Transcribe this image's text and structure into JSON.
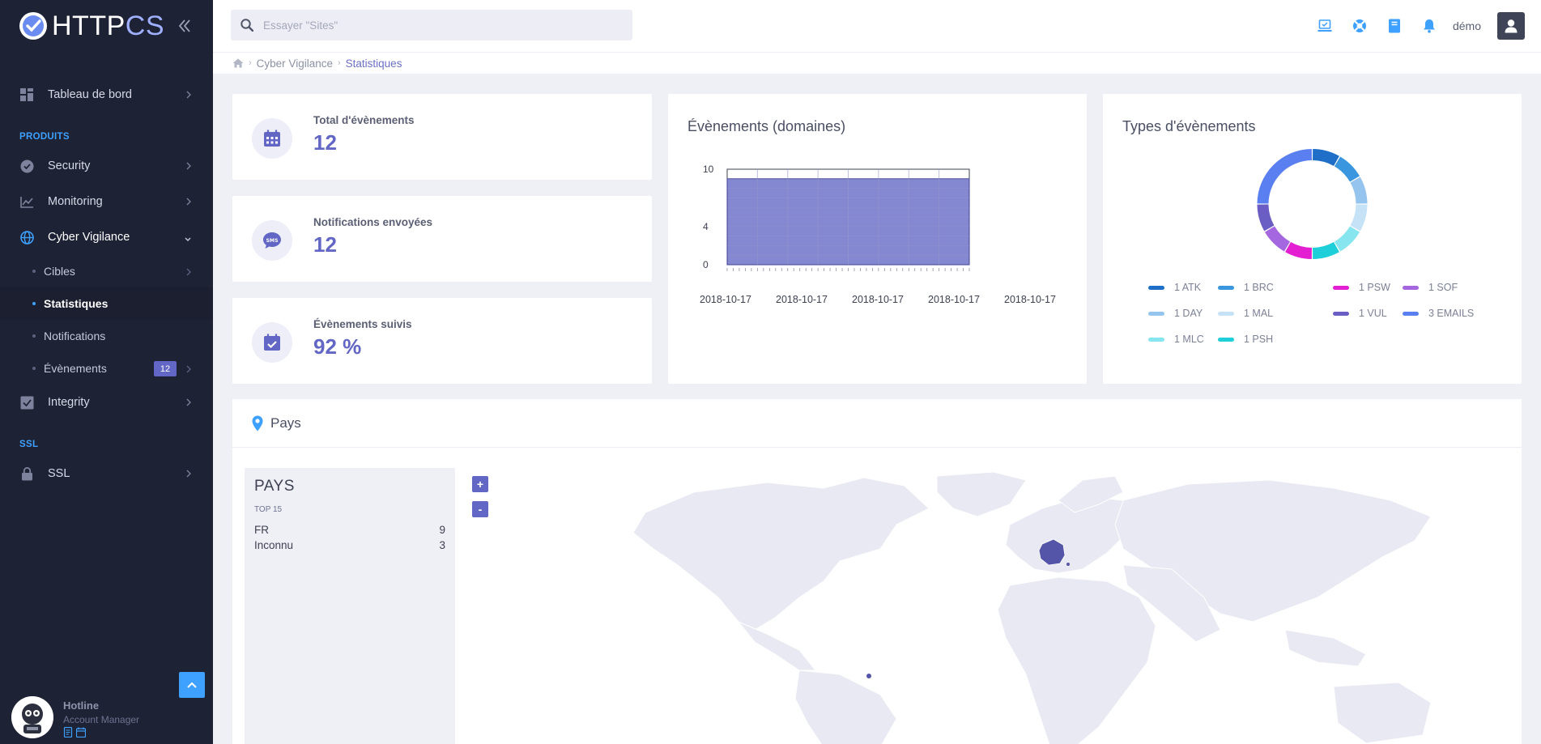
{
  "app": {
    "logo_main": "HTTP",
    "logo_accent": "CS"
  },
  "sidebar": {
    "dashboard": "Tableau de bord",
    "section_products": "PRODUITS",
    "security": "Security",
    "monitoring": "Monitoring",
    "cyber": "Cyber Vigilance",
    "sub": [
      {
        "label": "Cibles"
      },
      {
        "label": "Statistiques"
      },
      {
        "label": "Notifications"
      },
      {
        "label": "Évènements",
        "badge": "12"
      }
    ],
    "integrity": "Integrity",
    "section_ssl": "SSL",
    "ssl": "SSL",
    "hotline": {
      "name": "Hotline",
      "role": "Account Manager"
    }
  },
  "topbar": {
    "search_placeholder": "Essayer \"Sites\"",
    "username": "démo"
  },
  "breadcrumb": {
    "parent": "Cyber Vigilance",
    "current": "Statistiques"
  },
  "stats": [
    {
      "label": "Total d'évènements",
      "value": "12",
      "icon": "calendar-icon"
    },
    {
      "label": "Notifications envoyées",
      "value": "12",
      "icon": "sms-icon"
    },
    {
      "label": "Évènements suivis",
      "value": "92 %",
      "icon": "calendar-check-icon"
    }
  ],
  "events_chart": {
    "title": "Évènements (domaines)",
    "y_ticks": [
      "10",
      "4",
      "0"
    ],
    "x_ticks": [
      "2018-10-17",
      "2018-10-17",
      "2018-10-17",
      "2018-10-17",
      "2018-10-17"
    ]
  },
  "chart_data": [
    {
      "type": "area",
      "title": "Évènements (domaines)",
      "x": [
        "2018-10-17",
        "2018-10-17",
        "2018-10-17",
        "2018-10-17",
        "2018-10-17"
      ],
      "values": [
        9,
        9,
        9,
        9,
        9
      ],
      "ylim": [
        0,
        10
      ],
      "grid": true,
      "color": "#6266c4"
    },
    {
      "type": "pie",
      "title": "Types d'évènements",
      "labels": [
        "1 ATK",
        "1 BRC",
        "1 PSW",
        "1 SOF",
        "1 DAY",
        "1 MAL",
        "1 VUL",
        "3 EMAILS",
        "1 MLC",
        "1 PSH"
      ],
      "segments": [
        {
          "name": "ATK",
          "value": 1,
          "color": "#1f6fc9"
        },
        {
          "name": "BRC",
          "value": 1,
          "color": "#3b96e0"
        },
        {
          "name": "DAY",
          "value": 1,
          "color": "#95c5ef"
        },
        {
          "name": "MAL",
          "value": 1,
          "color": "#c6e2f7"
        },
        {
          "name": "MLC",
          "value": 1,
          "color": "#86e5ee"
        },
        {
          "name": "PSH",
          "value": 1,
          "color": "#1ecfd9"
        },
        {
          "name": "PSW",
          "value": 1,
          "color": "#e31fd1"
        },
        {
          "name": "SOF",
          "value": 1,
          "color": "#a467e0"
        },
        {
          "name": "VUL",
          "value": 1,
          "color": "#6a5ec4"
        },
        {
          "name": "EMAILS",
          "value": 3,
          "color": "#5a7ff0"
        }
      ],
      "donut": true,
      "legend": "bottom"
    }
  ],
  "types_chart": {
    "title": "Types d'évènements"
  },
  "pays": {
    "header": "Pays",
    "panel_title": "PAYS",
    "panel_sub": "TOP 15",
    "rows": [
      {
        "country": "FR",
        "count": "9"
      },
      {
        "country": "Inconnu",
        "count": "3"
      }
    ],
    "zoom_in": "+",
    "zoom_out": "-"
  },
  "colors": {
    "accent": "#6266c4",
    "blue": "#3ea1ff",
    "sidebar": "#1e2235"
  }
}
